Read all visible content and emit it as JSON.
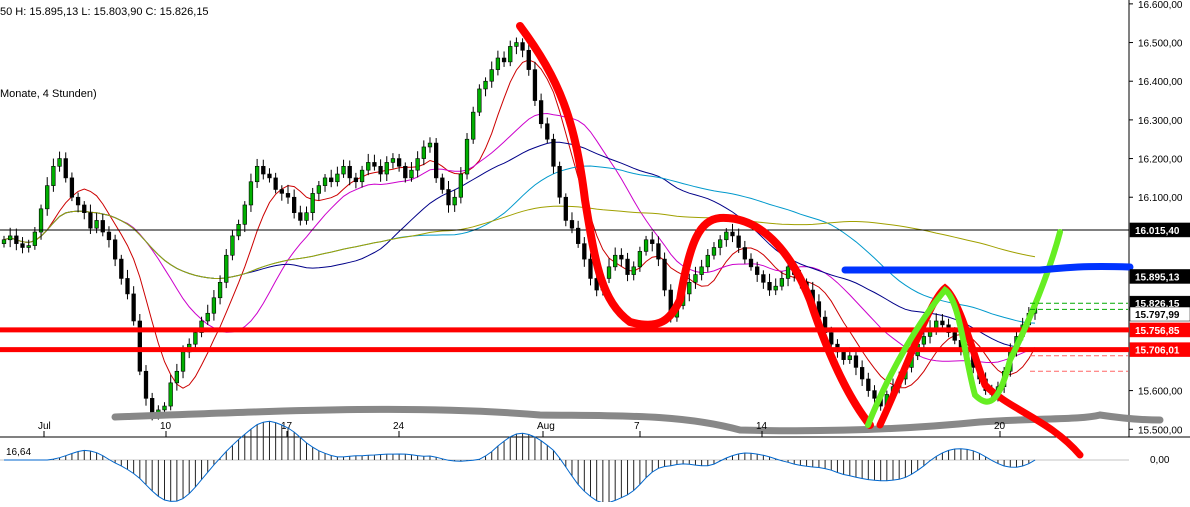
{
  "header": {
    "ohlc": "50   H: 15.895,13   L: 15.803,90   C: 15.826,15",
    "subtitle": "Monate, 4 Stunden)"
  },
  "indicator": {
    "label": "16,64",
    "zero_tick": "0,00"
  },
  "chart_data": {
    "type": "candlestick",
    "y_axis": {
      "min": 15480,
      "max": 16610,
      "ticks": [
        {
          "value": 16600,
          "label": "16.600,00"
        },
        {
          "value": 16500,
          "label": "16.500,00"
        },
        {
          "value": 16400,
          "label": "16.400,00"
        },
        {
          "value": 16300,
          "label": "16.300,00"
        },
        {
          "value": 16200,
          "label": "16.200,00"
        },
        {
          "value": 16100,
          "label": "16.100,00"
        },
        {
          "value": 15600,
          "label": "15.600,00"
        },
        {
          "value": 15500,
          "label": "15.500,00"
        }
      ]
    },
    "x_axis": {
      "ticks": [
        "Jul",
        "10",
        "17",
        "24",
        "Aug",
        "7",
        "14",
        "20"
      ]
    },
    "price_boxes": [
      {
        "value": 16015.4,
        "label": "16.015,40",
        "color": "#000000",
        "line": true
      },
      {
        "value": 15895.13,
        "label": "15.895,13",
        "color": "#000000",
        "line": false
      },
      {
        "value": 15826.15,
        "label": "15.826,15",
        "color": "#000000",
        "line": false
      },
      {
        "value": 15797.99,
        "label": "15.797,99",
        "color": "#ffffff",
        "line": false
      },
      {
        "value": 15756.85,
        "label": "15.756,85",
        "color": "#ff0000",
        "line": true
      },
      {
        "value": 15706.01,
        "label": "15.706,01",
        "color": "#ff0000",
        "line": true
      }
    ],
    "closes": [
      15990,
      16000,
      15980,
      15970,
      15975,
      16010,
      16070,
      16130,
      16180,
      16200,
      16150,
      16100,
      16080,
      16060,
      16020,
      16040,
      16010,
      15990,
      15940,
      15890,
      15850,
      15780,
      15650,
      15580,
      15540,
      15550,
      15560,
      15620,
      15650,
      15700,
      15720,
      15750,
      15780,
      15800,
      15840,
      15880,
      15950,
      16000,
      16030,
      16080,
      16140,
      16180,
      16160,
      16150,
      16120,
      16110,
      16100,
      16060,
      16040,
      16060,
      16110,
      16130,
      16150,
      16140,
      16160,
      16180,
      16150,
      16140,
      16170,
      16190,
      16180,
      16160,
      16190,
      16200,
      16180,
      16150,
      16170,
      16200,
      16230,
      16240,
      16150,
      16120,
      16080,
      16100,
      16160,
      16250,
      16320,
      16380,
      16400,
      16430,
      16460,
      16450,
      16490,
      16500,
      16480,
      16430,
      16350,
      16290,
      16250,
      16180,
      16100,
      16040,
      16020,
      15980,
      15940,
      15890,
      15860,
      15890,
      15920,
      15950,
      15940,
      15900,
      15920,
      15960,
      15990,
      15980,
      15940,
      15860,
      15790,
      15820,
      15850,
      15880,
      15900,
      15920,
      15950,
      15970,
      15990,
      16010,
      16000,
      15970,
      15940,
      15920,
      15900,
      15880,
      15860,
      15870,
      15890,
      15920,
      15900,
      15880,
      15860,
      15830,
      15790,
      15750,
      15720,
      15700,
      15680,
      15690,
      15660,
      15630,
      15600,
      15580,
      15560,
      15590,
      15610,
      15630,
      15660,
      15690,
      15720,
      15740,
      15760,
      15780,
      15770,
      15750,
      15730,
      15710,
      15690,
      15660,
      15630,
      15600,
      15590,
      15610,
      15650,
      15700,
      15740,
      15770,
      15800,
      15826
    ]
  }
}
